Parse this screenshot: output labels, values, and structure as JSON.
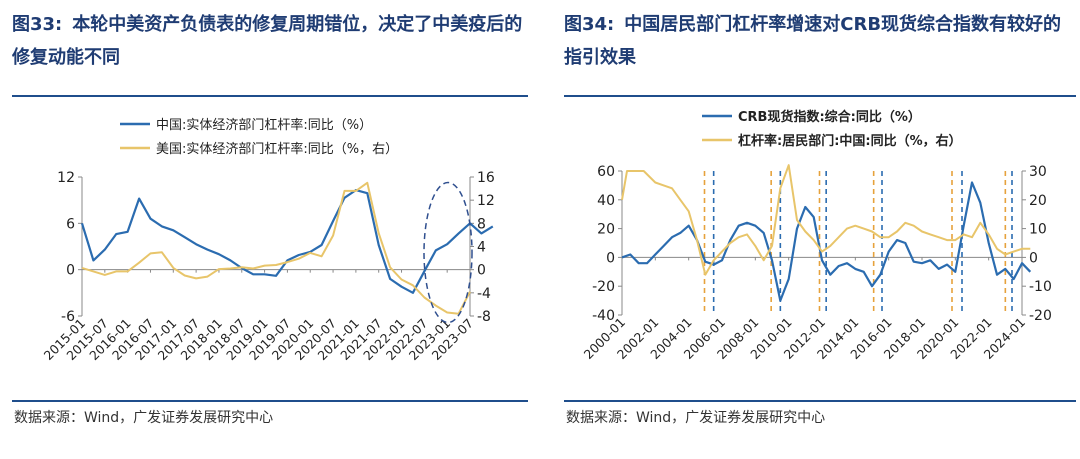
{
  "figures": [
    {
      "number": "图33:",
      "title": "本轮中美资产负债表的修复周期错位，决定了中美疫后的修复动能不同",
      "source": "数据来源：Wind，广发证券发展研究中心"
    },
    {
      "number": "图34:",
      "title": "中国居民部门杠杆率增速对CRB现货综合指数有较好的指引效果",
      "source": "数据来源：Wind，广发证券发展研究中心"
    }
  ],
  "colors": {
    "blue": "#2b6cb0",
    "gold": "#e8c56a",
    "dashed_gold": "#e6a23c",
    "dashed_blue": "#2b6cb0",
    "ellipse": "#2f4f8f",
    "title": "#1f3c73"
  },
  "chart_data": [
    {
      "type": "line",
      "title": "图33",
      "legend_position": "top",
      "categories": [
        "2015-01",
        "2015-07",
        "2016-01",
        "2016-07",
        "2017-01",
        "2017-07",
        "2018-01",
        "2018-07",
        "2019-01",
        "2019-07",
        "2020-01",
        "2020-07",
        "2021-01",
        "2021-07",
        "2022-01",
        "2022-07",
        "2023-01",
        "2023-07"
      ],
      "left_axis": {
        "min": -6,
        "max": 12,
        "ticks": [
          "-6",
          "0",
          "6",
          "12"
        ]
      },
      "right_axis": {
        "min": -8,
        "max": 16,
        "ticks": [
          "-8",
          "-4",
          "0",
          "4",
          "8",
          "12",
          "16"
        ]
      },
      "series": [
        {
          "name": "中国:实体经济部门杠杆率:同比（%）",
          "axis": "left",
          "color": "#2b6cb0",
          "x": [
            0,
            0.5,
            1,
            1.5,
            2,
            2.5,
            3,
            3.5,
            4,
            4.5,
            5,
            5.5,
            6,
            6.5,
            7,
            7.5,
            8,
            8.5,
            9,
            9.5,
            10,
            10.5,
            11,
            11.5,
            12,
            12.5,
            13,
            13.5,
            14,
            14.5,
            15,
            15.5,
            16,
            16.5,
            17,
            17.5,
            18
          ],
          "values": [
            6.0,
            1.2,
            2.6,
            4.6,
            4.9,
            9.2,
            6.6,
            5.6,
            5.1,
            4.2,
            3.3,
            2.6,
            2.0,
            1.2,
            0.2,
            -0.6,
            -0.6,
            -0.8,
            1.2,
            1.9,
            2.3,
            3.2,
            6.3,
            9.3,
            10.3,
            9.9,
            3.2,
            -1.2,
            -2.2,
            -3.0,
            -0.2,
            2.5,
            3.3,
            4.7,
            6.0,
            4.7,
            5.6
          ]
        },
        {
          "name": "美国:实体经济部门杠杆率:同比（%，右）",
          "axis": "right",
          "color": "#e8c56a",
          "x": [
            0,
            0.5,
            1,
            1.5,
            2,
            2.5,
            3,
            3.5,
            4,
            4.5,
            5,
            5.5,
            6,
            6.5,
            7,
            7.5,
            8,
            8.5,
            9,
            9.5,
            10,
            10.5,
            11,
            11.5,
            12,
            12.5,
            13,
            13.5,
            14,
            14.5,
            15,
            15.5,
            16,
            16.5,
            17
          ],
          "values": [
            0.3,
            -0.3,
            -0.9,
            -0.3,
            -0.3,
            1.2,
            2.8,
            3.0,
            0.3,
            -1.0,
            -1.5,
            -1.2,
            0.1,
            0.2,
            0.4,
            0.2,
            0.7,
            0.8,
            1.3,
            1.9,
            2.9,
            2.3,
            5.9,
            13.6,
            13.6,
            15.0,
            6.3,
            0.4,
            -1.7,
            -2.7,
            -4.8,
            -6.2,
            -7.4,
            -7.6,
            -3.8
          ]
        }
      ],
      "annotation": "dashed-ellipse"
    },
    {
      "type": "line",
      "title": "图34",
      "legend_position": "top",
      "categories": [
        "2000-01",
        "2002-01",
        "2004-01",
        "2006-01",
        "2008-01",
        "2010-01",
        "2012-01",
        "2014-01",
        "2016-01",
        "2018-01",
        "2020-01",
        "2022-01",
        "2024-01"
      ],
      "left_axis": {
        "min": -40,
        "max": 60,
        "ticks": [
          "-40",
          "-20",
          "0",
          "20",
          "40",
          "60"
        ]
      },
      "right_axis": {
        "min": -20,
        "max": 30,
        "ticks": [
          "-20",
          "-10",
          "0",
          "10",
          "20",
          "30"
        ]
      },
      "series": [
        {
          "name": "CRB现货指数:综合:同比（%）",
          "axis": "left",
          "color": "#2b6cb0",
          "x": [
            0,
            0.5,
            1,
            1.5,
            2,
            2.5,
            3,
            3.5,
            4,
            4.5,
            5,
            5.5,
            6,
            6.5,
            7,
            7.5,
            8,
            8.5,
            9,
            9.5,
            10,
            10.5,
            11,
            11.5,
            12,
            12.5,
            13,
            13.5,
            14,
            14.5,
            15,
            15.5,
            16,
            16.5,
            17,
            17.5,
            18,
            18.5,
            19,
            19.5,
            20,
            20.5,
            21,
            21.5,
            22,
            22.5,
            23,
            23.5,
            24,
            24.5
          ],
          "values": [
            0,
            2,
            -4,
            -4,
            2,
            8,
            14,
            17,
            22,
            12,
            -3,
            -5,
            -2,
            12,
            22,
            24,
            22,
            17,
            -2,
            -30,
            -15,
            20,
            35,
            28,
            -2,
            -12,
            -6,
            -4,
            -8,
            -10,
            -20,
            -12,
            4,
            12,
            10,
            -3,
            -4,
            -2,
            -8,
            -5,
            -10,
            22,
            52,
            38,
            10,
            -12,
            -8,
            -15,
            -4,
            -10
          ]
        },
        {
          "name": "杠杆率:居民部门:中国:同比（%，右）",
          "axis": "right",
          "color": "#e8c56a",
          "x": [
            0,
            0.3,
            1.3,
            2,
            2.5,
            3,
            3.5,
            4,
            4.5,
            5,
            5.5,
            6,
            6.5,
            7,
            7.5,
            8,
            8.5,
            9,
            9.5,
            10,
            10.5,
            11,
            11.5,
            12,
            12.5,
            13,
            13.5,
            14,
            14.5,
            15,
            15.5,
            16,
            16.5,
            17,
            17.5,
            18,
            18.5,
            19,
            19.5,
            20,
            20.5,
            21,
            21.5,
            22,
            22.5,
            23,
            23.5,
            24,
            24.5
          ],
          "values": [
            20,
            30,
            30,
            26,
            25,
            24,
            20,
            16,
            6,
            -6,
            -1,
            2,
            5,
            7,
            8,
            4,
            -1,
            4,
            24,
            32,
            13,
            9,
            6,
            2,
            4,
            7,
            10,
            11,
            10,
            9,
            7,
            7,
            9,
            12,
            11,
            9,
            8,
            7,
            6,
            6,
            8,
            7,
            12,
            8,
            3,
            1,
            2,
            3,
            3
          ]
        }
      ],
      "dashed_markers": [
        {
          "x": 4.95,
          "color": "#e6a23c"
        },
        {
          "x": 5.5,
          "color": "#2b6cb0"
        },
        {
          "x": 8.95,
          "color": "#e6a23c"
        },
        {
          "x": 9.5,
          "color": "#2b6cb0"
        },
        {
          "x": 11.85,
          "color": "#e6a23c"
        },
        {
          "x": 12.25,
          "color": "#2b6cb0"
        },
        {
          "x": 15.1,
          "color": "#e6a23c"
        },
        {
          "x": 15.6,
          "color": "#2b6cb0"
        },
        {
          "x": 19.8,
          "color": "#e6a23c"
        },
        {
          "x": 20.4,
          "color": "#2b6cb0"
        },
        {
          "x": 23.0,
          "color": "#e6a23c"
        },
        {
          "x": 23.4,
          "color": "#2b6cb0"
        }
      ]
    }
  ]
}
